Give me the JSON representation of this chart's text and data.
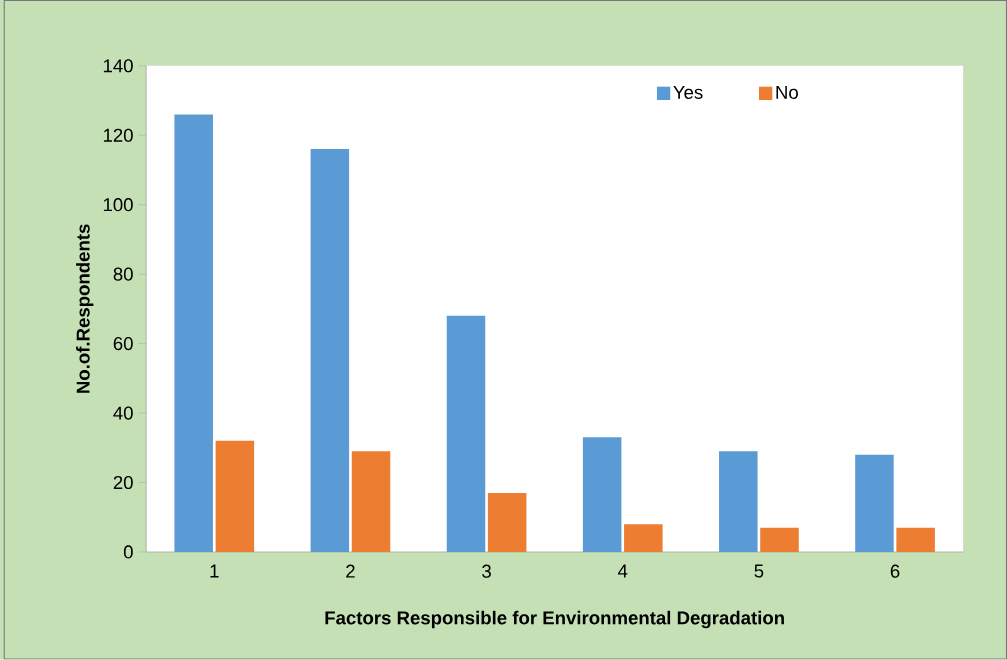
{
  "chart_data": {
    "type": "bar",
    "xlabel": "Factors Responsible for Environmental Degradation",
    "ylabel": "No.of.Respondents",
    "categories": [
      "1",
      "2",
      "3",
      "4",
      "5",
      "6"
    ],
    "series": [
      {
        "name": "Yes",
        "color": "#5b9bd5",
        "values": [
          126,
          116,
          68,
          33,
          29,
          28
        ]
      },
      {
        "name": "No",
        "color": "#ed7d31",
        "values": [
          32,
          29,
          17,
          8,
          7,
          7
        ]
      }
    ],
    "ylim": [
      0,
      140
    ],
    "yticks": [
      0,
      20,
      40,
      60,
      80,
      100,
      120,
      140
    ],
    "grid": false,
    "legend": "top right"
  }
}
